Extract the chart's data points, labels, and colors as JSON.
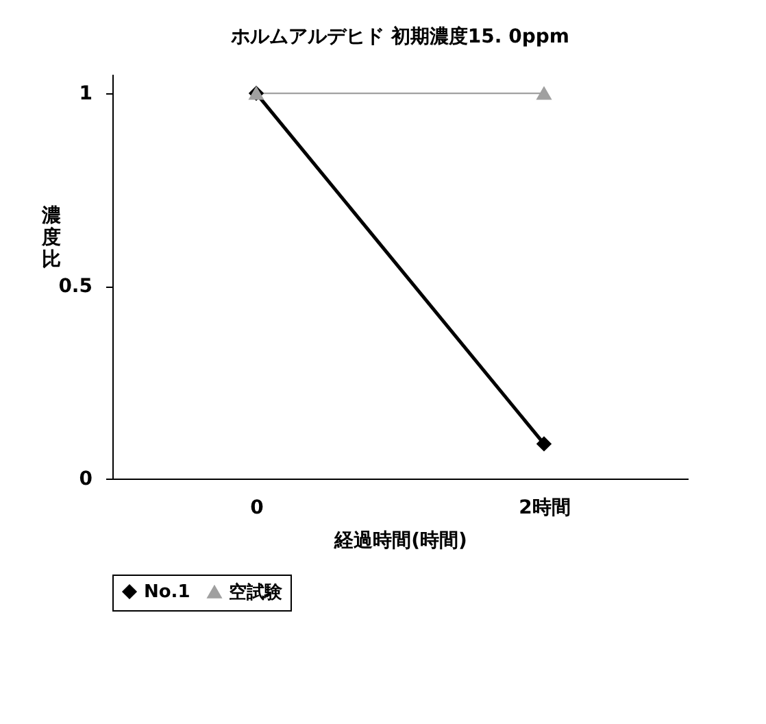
{
  "chart_data": {
    "type": "line",
    "title": "ホルムアルデヒド 初期濃度15. 0ppm",
    "xlabel": "経過時間(時間)",
    "ylabel": "濃度比",
    "categories": [
      "0",
      "2時間"
    ],
    "series": [
      {
        "name": "No.1",
        "color": "#000000",
        "values": [
          1,
          0.09
        ],
        "marker": "diamond"
      },
      {
        "name": "空試験",
        "color": "#a0a0a0",
        "values": [
          1,
          1
        ],
        "marker": "triangle"
      }
    ],
    "ylim": [
      0,
      1.05
    ],
    "yticks": [
      0,
      0.5,
      1
    ],
    "grid": false,
    "legend": "bottom"
  }
}
